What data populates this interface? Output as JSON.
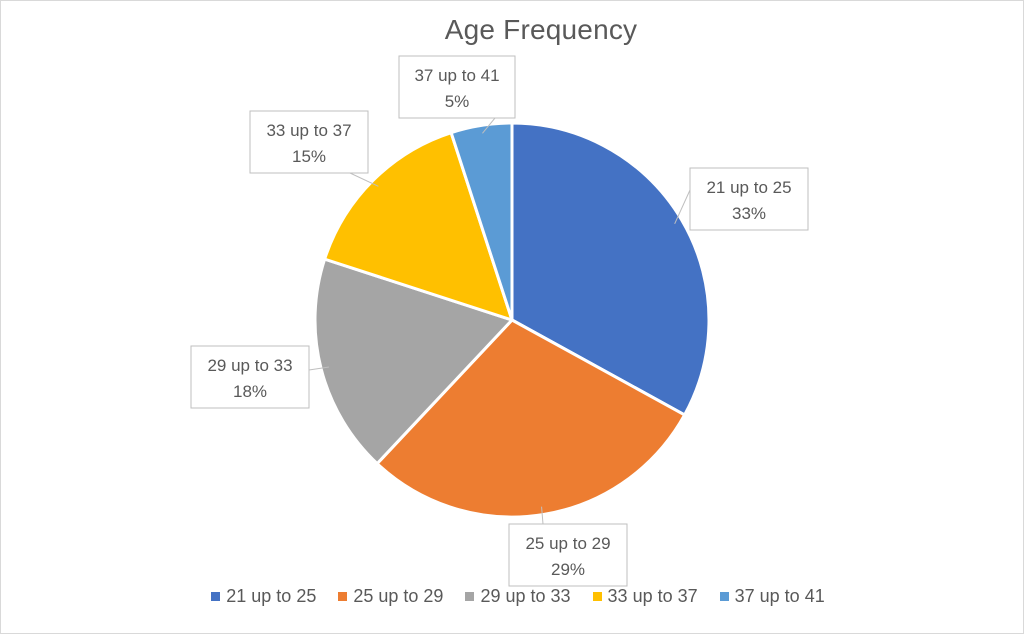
{
  "chart_data": {
    "type": "pie",
    "title": "Age Frequency",
    "categories": [
      "21 up to 25",
      "25 up to 29",
      "29 up to 33",
      "33 up to 37",
      "37 up to 41"
    ],
    "values": [
      33,
      29,
      18,
      15,
      5
    ],
    "data_labels": [
      "33%",
      "29%",
      "18%",
      "15%",
      "5%"
    ],
    "unit": "%",
    "colors": [
      "#4472C4",
      "#ED7D31",
      "#A5A5A5",
      "#FFC000",
      "#5B9BD5"
    ],
    "legend_position": "bottom",
    "start_angle": "12 o'clock, clockwise"
  }
}
